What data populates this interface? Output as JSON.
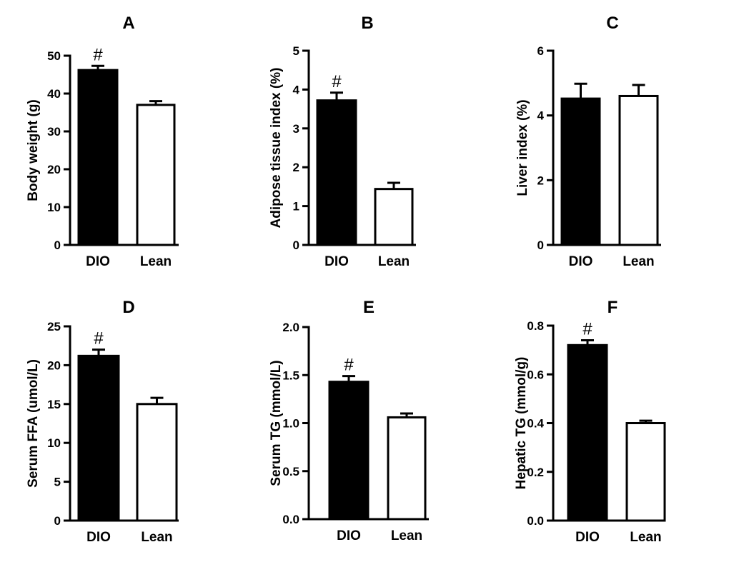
{
  "figure": {
    "colors": {
      "dio": "#000000",
      "lean": "#ffffff",
      "axis": "#000000"
    }
  },
  "chart_data": [
    {
      "type": "bar",
      "title": "A",
      "xlabel": "",
      "ylabel": "Body weight (g)",
      "categories": [
        "DIO",
        "Lean"
      ],
      "values": [
        46.2,
        37.0
      ],
      "errors": [
        1.1,
        1.0
      ],
      "ylim": [
        0,
        50
      ],
      "yticks": [
        0,
        10,
        20,
        30,
        40,
        50
      ],
      "tick_labels": [
        "0",
        "10",
        "20",
        "30",
        "40",
        "50"
      ],
      "significance": [
        "#",
        ""
      ]
    },
    {
      "type": "bar",
      "title": "B",
      "xlabel": "",
      "ylabel": "Adipose tissue index (%)",
      "categories": [
        "DIO",
        "Lean"
      ],
      "values": [
        3.72,
        1.44
      ],
      "errors": [
        0.2,
        0.16
      ],
      "ylim": [
        0,
        5
      ],
      "yticks": [
        0,
        1,
        2,
        3,
        4,
        5
      ],
      "tick_labels": [
        "0",
        "1",
        "2",
        "3",
        "4",
        "5"
      ],
      "significance": [
        "#",
        ""
      ]
    },
    {
      "type": "bar",
      "title": "C",
      "xlabel": "",
      "ylabel": "Liver index (%)",
      "categories": [
        "DIO",
        "Lean"
      ],
      "values": [
        4.52,
        4.6
      ],
      "errors": [
        0.46,
        0.34
      ],
      "ylim": [
        0,
        6
      ],
      "yticks": [
        0,
        2,
        4,
        6
      ],
      "tick_labels": [
        "0",
        "2",
        "4",
        "6"
      ],
      "significance": [
        "",
        ""
      ]
    },
    {
      "type": "bar",
      "title": "D",
      "xlabel": "",
      "ylabel": "Serum FFA (umol/L)",
      "categories": [
        "DIO",
        "Lean"
      ],
      "values": [
        21.2,
        15.0
      ],
      "errors": [
        0.8,
        0.8
      ],
      "ylim": [
        0,
        25
      ],
      "yticks": [
        0,
        5,
        10,
        15,
        20,
        25
      ],
      "tick_labels": [
        "0",
        "5",
        "10",
        "15",
        "20",
        "25"
      ],
      "significance": [
        "#",
        ""
      ]
    },
    {
      "type": "bar",
      "title": "E",
      "xlabel": "",
      "ylabel": "Serum TG (mmol/L)",
      "categories": [
        "DIO",
        "Lean"
      ],
      "values": [
        1.43,
        1.06
      ],
      "errors": [
        0.06,
        0.04
      ],
      "ylim": [
        0,
        2.0
      ],
      "yticks": [
        0,
        0.5,
        1.0,
        1.5,
        2.0
      ],
      "tick_labels": [
        "0.0",
        "0.5",
        "1.0",
        "1.5",
        "2.0"
      ],
      "significance": [
        "#",
        ""
      ]
    },
    {
      "type": "bar",
      "title": "F",
      "xlabel": "",
      "ylabel": "Hepatic TG (mmol/g)",
      "categories": [
        "DIO",
        "Lean"
      ],
      "values": [
        0.72,
        0.4
      ],
      "errors": [
        0.02,
        0.01
      ],
      "ylim": [
        0,
        0.8
      ],
      "yticks": [
        0,
        0.2,
        0.4,
        0.6,
        0.8
      ],
      "tick_labels": [
        "0.0",
        "0.2",
        "0.4",
        "0.6",
        "0.8"
      ],
      "significance": [
        "#",
        ""
      ]
    }
  ]
}
